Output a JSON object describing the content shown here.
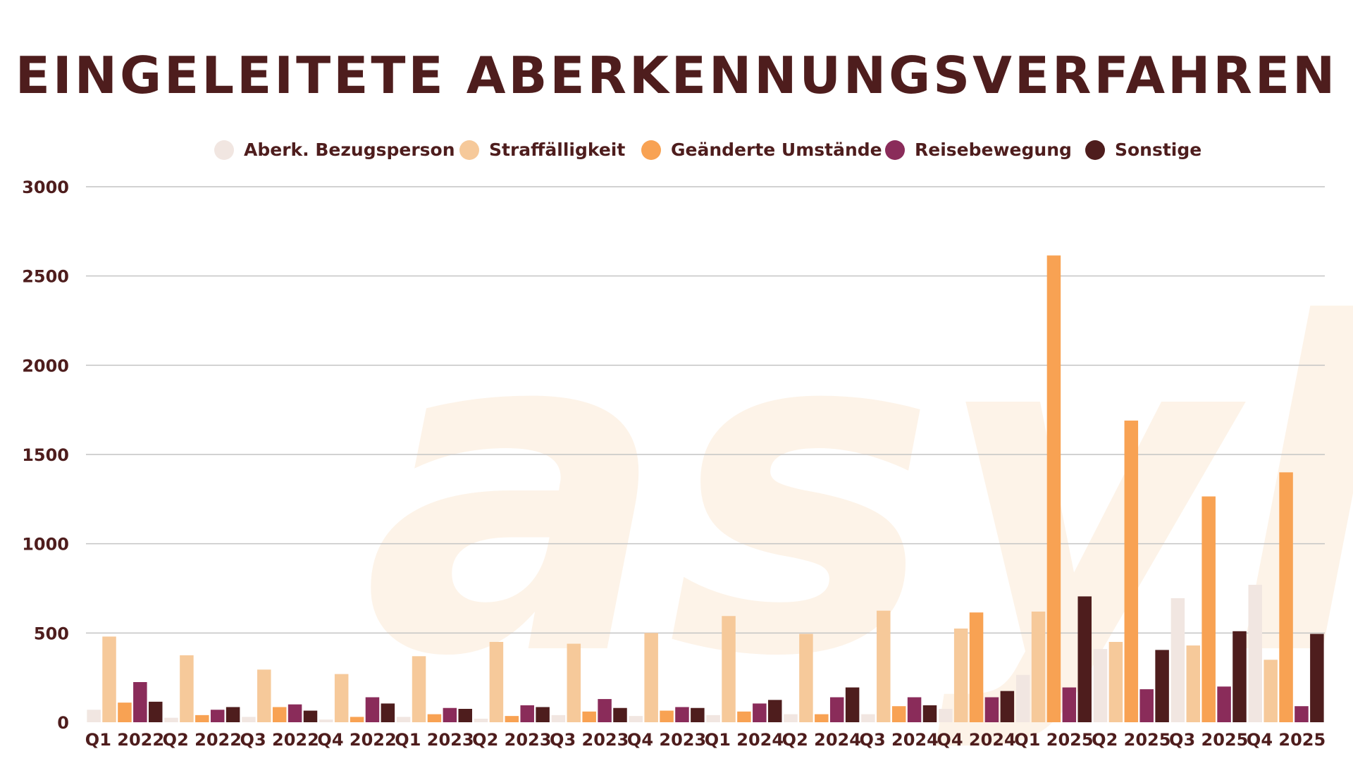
{
  "colors": {
    "title": "#4e1d1d",
    "text": "#4e1d1d",
    "grid": "#c4c4c4",
    "watermark": "#fdf3e8"
  },
  "watermark_text": "asyl",
  "chart_data": {
    "type": "bar",
    "title": "EINGELEITETE ABERKENNUNGSVERFAHREN",
    "xlabel": "",
    "ylabel": "",
    "ylim": [
      0,
      3000
    ],
    "yticks": [
      0,
      500,
      1000,
      1500,
      2000,
      2500,
      3000
    ],
    "grid": true,
    "legend_position": "top",
    "categories": [
      "Q1 2022",
      "Q2 2022",
      "Q3 2022",
      "Q4 2022",
      "Q1 2023",
      "Q2 2023",
      "Q3 2023",
      "Q4 2023",
      "Q1 2024",
      "Q2 2024",
      "Q3 2024",
      "Q4 2024",
      "Q1 2025",
      "Q2 2025",
      "Q3 2025",
      "Q4 2025"
    ],
    "series": [
      {
        "name": "Aberk. Bezugsperson",
        "color": "#f1e6e1",
        "values": [
          70,
          25,
          30,
          15,
          30,
          20,
          40,
          35,
          40,
          45,
          45,
          75,
          265,
          410,
          695,
          770
        ]
      },
      {
        "name": "Straffälligkeit",
        "color": "#f6c99a",
        "values": [
          480,
          375,
          295,
          270,
          370,
          450,
          440,
          500,
          595,
          495,
          625,
          525,
          620,
          450,
          430,
          350
        ]
      },
      {
        "name": "Geänderte Umstände",
        "color": "#f8a253",
        "values": [
          110,
          40,
          85,
          30,
          45,
          35,
          60,
          65,
          60,
          45,
          90,
          615,
          2615,
          1690,
          1265,
          1400
        ]
      },
      {
        "name": "Reisebewegung",
        "color": "#8a2c5a",
        "values": [
          225,
          70,
          100,
          140,
          80,
          95,
          130,
          85,
          105,
          140,
          140,
          140,
          195,
          185,
          200,
          90
        ]
      },
      {
        "name": "Sonstige",
        "color": "#4e1d1d",
        "values": [
          115,
          85,
          65,
          105,
          75,
          85,
          80,
          80,
          125,
          195,
          95,
          175,
          705,
          405,
          510,
          495
        ]
      }
    ]
  }
}
